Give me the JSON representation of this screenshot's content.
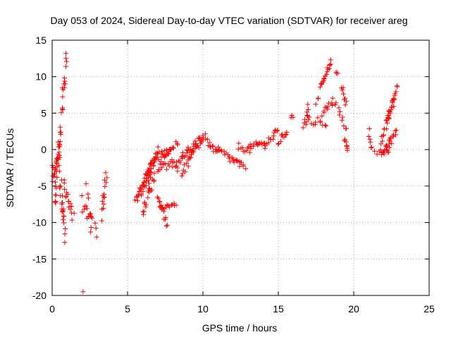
{
  "chart_data": {
    "type": "scatter",
    "title": "Day 053 of 2024, Sidereal Day-to-day VTEC variation (SDTVAR) for receiver areg",
    "xlabel": "GPS time / hours",
    "ylabel": "SDTVAR / TECUs",
    "xlim": [
      0,
      25
    ],
    "ylim": [
      -20,
      15
    ],
    "xticks": [
      0,
      5,
      10,
      15,
      20,
      25
    ],
    "yticks": [
      -20,
      -15,
      -10,
      -5,
      0,
      5,
      10,
      15
    ],
    "grid": true,
    "marker": "plus",
    "color": "#ff0000",
    "segments": [
      {
        "x0": 0.0,
        "y0": -3.5,
        "x1": 0.3,
        "y1": -1.5,
        "n": 14,
        "jitter": 1.2
      },
      {
        "x0": 0.2,
        "y0": -7.0,
        "x1": 0.55,
        "y1": 1.5,
        "n": 22,
        "jitter": 1.5
      },
      {
        "x0": 0.3,
        "y0": -2.0,
        "x1": 0.6,
        "y1": 3.0,
        "n": 10,
        "jitter": 1.0
      },
      {
        "x0": 0.5,
        "y0": -4.0,
        "x1": 0.85,
        "y1": -11.5,
        "n": 22,
        "jitter": 1.3
      },
      {
        "x0": 0.6,
        "y0": 5.0,
        "x1": 0.95,
        "y1": 12.0,
        "n": 16,
        "jitter": 1.2
      },
      {
        "x0": 0.8,
        "y0": -5.0,
        "x1": 1.4,
        "y1": -9.5,
        "n": 16,
        "jitter": 1.0
      },
      {
        "x0": 2.0,
        "y0": -7.5,
        "x1": 2.6,
        "y1": -9.0,
        "n": 12,
        "jitter": 1.2
      },
      {
        "x0": 2.3,
        "y0": -5.0,
        "x1": 2.6,
        "y1": -11.5,
        "n": 7,
        "jitter": 0.8
      },
      {
        "x0": 2.9,
        "y0": -10.0,
        "x1": 3.0,
        "y1": -12.0,
        "n": 3,
        "jitter": 0.3
      },
      {
        "x0": 3.3,
        "y0": -9.0,
        "x1": 3.6,
        "y1": -3.0,
        "n": 14,
        "jitter": 0.8
      },
      {
        "x0": 5.5,
        "y0": -7.5,
        "x1": 6.5,
        "y1": -3.0,
        "n": 22,
        "jitter": 0.8
      },
      {
        "x0": 5.8,
        "y0": -6.0,
        "x1": 6.5,
        "y1": -2.0,
        "n": 14,
        "jitter": 0.8
      },
      {
        "x0": 6.0,
        "y0": -8.5,
        "x1": 6.8,
        "y1": -4.0,
        "n": 18,
        "jitter": 0.8
      },
      {
        "x0": 6.3,
        "y0": -4.5,
        "x1": 7.0,
        "y1": 0.0,
        "n": 20,
        "jitter": 0.7
      },
      {
        "x0": 6.5,
        "y0": -2.0,
        "x1": 7.3,
        "y1": -0.5,
        "n": 12,
        "jitter": 0.6
      },
      {
        "x0": 7.0,
        "y0": -3.0,
        "x1": 7.8,
        "y1": 0.3,
        "n": 16,
        "jitter": 0.6
      },
      {
        "x0": 7.3,
        "y0": -1.0,
        "x1": 8.3,
        "y1": 1.0,
        "n": 16,
        "jitter": 0.5
      },
      {
        "x0": 7.0,
        "y0": -6.0,
        "x1": 7.6,
        "y1": -10.3,
        "n": 14,
        "jitter": 0.6
      },
      {
        "x0": 7.2,
        "y0": -8.0,
        "x1": 8.2,
        "y1": -7.5,
        "n": 14,
        "jitter": 0.4
      },
      {
        "x0": 7.5,
        "y0": -2.5,
        "x1": 8.2,
        "y1": -1.5,
        "n": 10,
        "jitter": 0.6
      },
      {
        "x0": 8.2,
        "y0": -3.0,
        "x1": 9.0,
        "y1": 0.0,
        "n": 16,
        "jitter": 0.7
      },
      {
        "x0": 8.6,
        "y0": -3.5,
        "x1": 9.5,
        "y1": 0.5,
        "n": 16,
        "jitter": 0.7
      },
      {
        "x0": 9.0,
        "y0": -1.0,
        "x1": 10.0,
        "y1": 2.0,
        "n": 18,
        "jitter": 0.6
      },
      {
        "x0": 9.5,
        "y0": 0.0,
        "x1": 10.2,
        "y1": 2.0,
        "n": 10,
        "jitter": 0.5
      },
      {
        "x0": 10.3,
        "y0": 1.0,
        "x1": 11.0,
        "y1": -0.5,
        "n": 12,
        "jitter": 0.4
      },
      {
        "x0": 11.0,
        "y0": 0.0,
        "x1": 12.0,
        "y1": -1.5,
        "n": 14,
        "jitter": 0.5
      },
      {
        "x0": 12.0,
        "y0": -1.5,
        "x1": 12.8,
        "y1": -2.5,
        "n": 12,
        "jitter": 0.5
      },
      {
        "x0": 12.3,
        "y0": 0.5,
        "x1": 13.0,
        "y1": 0.0,
        "n": 8,
        "jitter": 0.5
      },
      {
        "x0": 13.0,
        "y0": 0.0,
        "x1": 14.0,
        "y1": 1.0,
        "n": 16,
        "jitter": 0.6
      },
      {
        "x0": 14.0,
        "y0": 0.5,
        "x1": 15.0,
        "y1": 2.5,
        "n": 16,
        "jitter": 0.6
      },
      {
        "x0": 15.0,
        "y0": 1.0,
        "x1": 15.6,
        "y1": 2.5,
        "n": 10,
        "jitter": 0.5
      },
      {
        "x0": 15.8,
        "y0": 4.5,
        "x1": 16.0,
        "y1": 4.6,
        "n": 3,
        "jitter": 0.2
      },
      {
        "x0": 16.7,
        "y0": 2.5,
        "x1": 17.0,
        "y1": 6.5,
        "n": 8,
        "jitter": 0.6
      },
      {
        "x0": 16.8,
        "y0": 4.5,
        "x1": 17.5,
        "y1": 3.5,
        "n": 8,
        "jitter": 0.5
      },
      {
        "x0": 17.5,
        "y0": 6.5,
        "x1": 17.7,
        "y1": 7.0,
        "n": 3,
        "jitter": 0.3
      },
      {
        "x0": 17.8,
        "y0": 8.5,
        "x1": 18.5,
        "y1": 12.0,
        "n": 18,
        "jitter": 0.4
      },
      {
        "x0": 17.9,
        "y0": 5.0,
        "x1": 18.8,
        "y1": 6.8,
        "n": 14,
        "jitter": 0.6
      },
      {
        "x0": 17.6,
        "y0": 4.0,
        "x1": 18.2,
        "y1": 3.5,
        "n": 6,
        "jitter": 0.4
      },
      {
        "x0": 18.8,
        "y0": 10.5,
        "x1": 19.0,
        "y1": 10.3,
        "n": 3,
        "jitter": 0.2
      },
      {
        "x0": 19.2,
        "y0": 8.5,
        "x1": 19.5,
        "y1": 6.5,
        "n": 8,
        "jitter": 0.5
      },
      {
        "x0": 19.0,
        "y0": 5.5,
        "x1": 19.5,
        "y1": 3.0,
        "n": 8,
        "jitter": 0.5
      },
      {
        "x0": 19.4,
        "y0": 1.5,
        "x1": 19.6,
        "y1": -0.5,
        "n": 8,
        "jitter": 0.4
      },
      {
        "x0": 21.0,
        "y0": 2.5,
        "x1": 21.2,
        "y1": 0.0,
        "n": 6,
        "jitter": 0.4
      },
      {
        "x0": 21.4,
        "y0": -0.5,
        "x1": 21.8,
        "y1": -0.3,
        "n": 4,
        "jitter": 0.3
      },
      {
        "x0": 21.8,
        "y0": 1.0,
        "x1": 22.7,
        "y1": 7.0,
        "n": 20,
        "jitter": 0.5
      },
      {
        "x0": 22.2,
        "y0": 4.0,
        "x1": 22.9,
        "y1": 9.0,
        "n": 16,
        "jitter": 0.4
      },
      {
        "x0": 22.0,
        "y0": -0.3,
        "x1": 22.8,
        "y1": 2.5,
        "n": 18,
        "jitter": 0.5
      },
      {
        "x0": 21.8,
        "y0": -0.5,
        "x1": 22.4,
        "y1": 0.0,
        "n": 10,
        "jitter": 0.4
      }
    ],
    "points": [
      {
        "x": 2.05,
        "y": -19.5
      }
    ]
  }
}
